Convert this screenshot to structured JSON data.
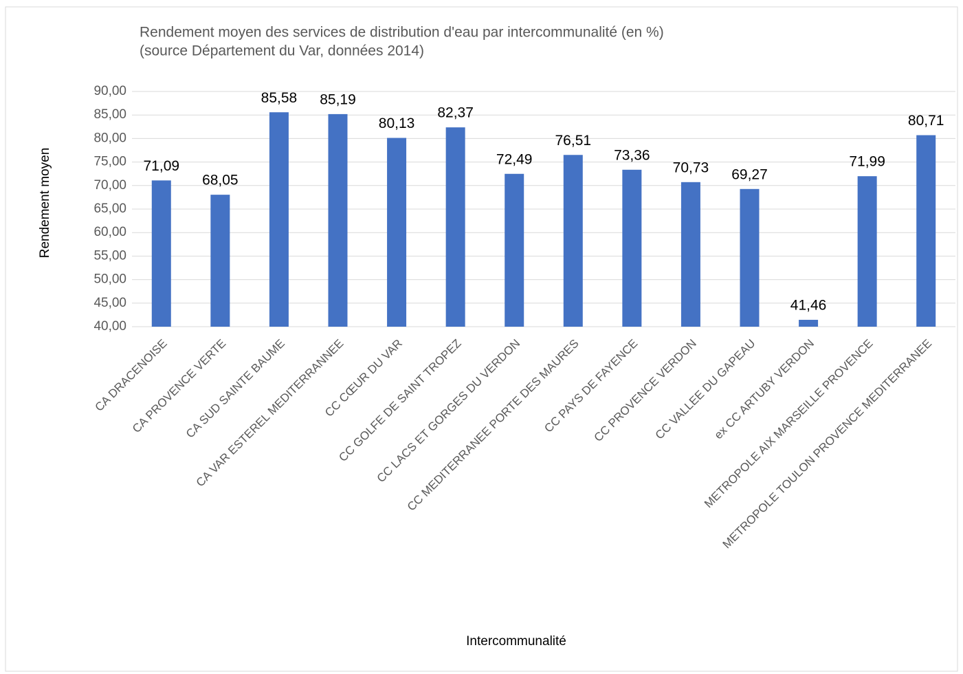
{
  "chart_data": {
    "type": "bar",
    "title": "Rendement moyen des services de distribution d'eau par intercommunalité (en %)",
    "subtitle": "(source Département du Var, données 2014)",
    "y_label": "Rendement moyen",
    "x_label": "Intercommunalité",
    "categories": [
      "CA DRACENOISE",
      "CA PROVENCE VERTE",
      "CA SUD SAINTE BAUME",
      "CA VAR ESTEREL MEDITERRANNEE",
      "CC CŒUR DU VAR",
      "CC GOLFE DE SAINT TROPEZ",
      "CC LACS ET GORGES DU VERDON",
      "CC MEDITERRANEE PORTE DES MAURES",
      "CC PAYS DE FAYENCE",
      "CC PROVENCE VERDON",
      "CC VALLEE DU GAPEAU",
      "ex CC ARTUBY VERDON",
      "METROPOLE AIX MARSEILLE PROVENCE",
      "METROPOLE TOULON PROVENCE MEDITERRANEE"
    ],
    "values": [
      71.09,
      68.05,
      85.58,
      85.19,
      80.13,
      82.37,
      72.49,
      76.51,
      73.36,
      70.73,
      69.27,
      41.46,
      71.99,
      80.71
    ],
    "value_labels": [
      "71,09",
      "68,05",
      "85,58",
      "85,19",
      "80,13",
      "82,37",
      "72,49",
      "76,51",
      "73,36",
      "70,73",
      "69,27",
      "41,46",
      "71,99",
      "80,71"
    ],
    "color": "#4472c4",
    "ylim": [
      40,
      90
    ],
    "yticks": [
      {
        "value": 40,
        "label": "40,00"
      },
      {
        "value": 45,
        "label": "45,00"
      },
      {
        "value": 50,
        "label": "50,00"
      },
      {
        "value": 55,
        "label": "55,00"
      },
      {
        "value": 60,
        "label": "60,00"
      },
      {
        "value": 65,
        "label": "65,00"
      },
      {
        "value": 70,
        "label": "70,00"
      },
      {
        "value": 75,
        "label": "75,00"
      },
      {
        "value": 80,
        "label": "80,00"
      },
      {
        "value": 85,
        "label": "85,00"
      },
      {
        "value": 90,
        "label": "90,00"
      }
    ],
    "grid": true
  }
}
